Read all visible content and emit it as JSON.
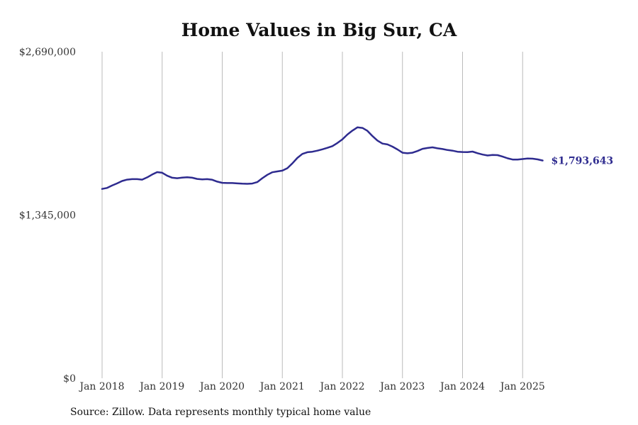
{
  "chart_data": {
    "type": "line",
    "title": "Home Values in Big Sur, CA",
    "xlabel": "",
    "ylabel": "",
    "ylim": [
      0,
      2690000
    ],
    "y_ticks": [
      {
        "value": 0,
        "label": "$0"
      },
      {
        "value": 1345000,
        "label": "$1,345,000"
      },
      {
        "value": 2690000,
        "label": "$2,690,000"
      }
    ],
    "x_ticks": [
      "Jan 2018",
      "Jan 2019",
      "Jan 2020",
      "Jan 2021",
      "Jan 2022",
      "Jan 2023",
      "Jan 2024",
      "Jan 2025"
    ],
    "grid": "vertical",
    "line_color": "#2e2b8f",
    "end_label": "$1,793,643",
    "series": [
      {
        "start": "2018-01",
        "values": [
          1560000,
          1568000,
          1588000,
          1605000,
          1625000,
          1636000,
          1640000,
          1640000,
          1636000,
          1655000,
          1678000,
          1698000,
          1693000,
          1668000,
          1652000,
          1648000,
          1653000,
          1656000,
          1652000,
          1642000,
          1638000,
          1640000,
          1635000,
          1620000,
          1610000,
          1608000,
          1608000,
          1605000,
          1603000,
          1602000,
          1604000,
          1616000,
          1648000,
          1676000,
          1697000,
          1704000,
          1710000,
          1730000,
          1770000,
          1815000,
          1848000,
          1862000,
          1866000,
          1875000,
          1886000,
          1898000,
          1912000,
          1938000,
          1968000,
          2008000,
          2040000,
          2067000,
          2062000,
          2038000,
          1995000,
          1958000,
          1933000,
          1926000,
          1908000,
          1885000,
          1858000,
          1853000,
          1858000,
          1872000,
          1890000,
          1897000,
          1902000,
          1894000,
          1888000,
          1880000,
          1875000,
          1866000,
          1864000,
          1863000,
          1867000,
          1854000,
          1843000,
          1835000,
          1839000,
          1838000,
          1826000,
          1812000,
          1802000,
          1802000,
          1806000,
          1810000,
          1809000,
          1803000,
          1793643
        ]
      }
    ]
  },
  "source": "Source: Zillow. Data represents monthly typical home value"
}
